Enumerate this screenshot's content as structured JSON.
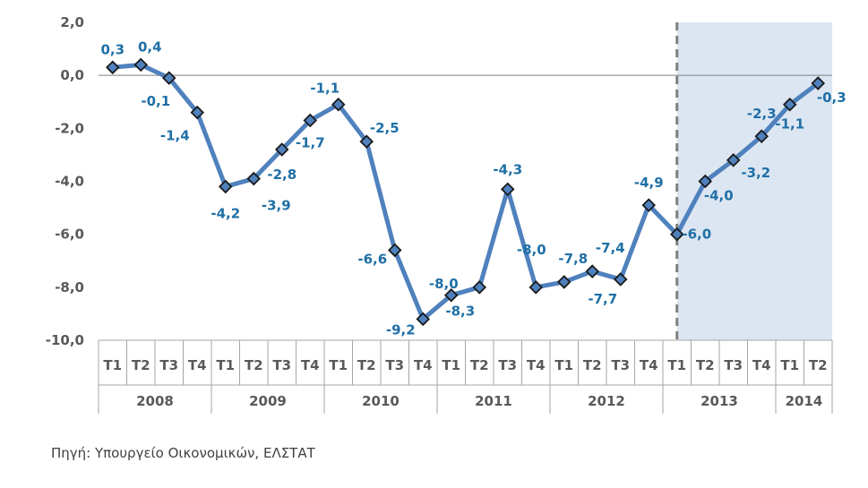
{
  "chart_data": {
    "type": "line",
    "categories": [
      "T1",
      "T2",
      "T3",
      "T4",
      "T1",
      "T2",
      "T3",
      "T4",
      "T1",
      "T2",
      "T3",
      "T4",
      "T1",
      "T2",
      "T3",
      "T4",
      "T1",
      "T2",
      "T3",
      "T4",
      "T1",
      "T2",
      "T3",
      "T4",
      "T1",
      "T2"
    ],
    "years": [
      {
        "label": "2008",
        "quarters": 4
      },
      {
        "label": "2009",
        "quarters": 4
      },
      {
        "label": "2010",
        "quarters": 4
      },
      {
        "label": "2011",
        "quarters": 4
      },
      {
        "label": "2012",
        "quarters": 4
      },
      {
        "label": "2013",
        "quarters": 4
      },
      {
        "label": "2014",
        "quarters": 2
      }
    ],
    "series": [
      {
        "values": [
          0.3,
          0.4,
          -0.1,
          -1.4,
          -4.2,
          -3.9,
          -2.8,
          -1.7,
          -1.1,
          -2.5,
          -6.6,
          -9.2,
          -8.3,
          -8.0,
          -4.3,
          -8.0,
          -7.8,
          -7.4,
          -7.7,
          -4.9,
          -6.0,
          -4.0,
          -3.2,
          -2.3,
          -1.1,
          -0.3
        ],
        "labels": [
          "0,3",
          "0,4",
          "-0,1",
          "-1,4",
          "-4,2",
          "-3,9",
          "-2,8",
          "-1,7",
          "-1,1",
          "-2,5",
          "-6,6",
          "-9,2",
          "-8,3",
          "-8,0",
          "-4,3",
          "-8,0",
          "-7,8",
          "-7,4",
          "-7,7",
          "-4,9",
          "-6,0",
          "-4,0",
          "-3,2",
          "-2,3",
          "-1,1",
          "-0,3"
        ]
      }
    ],
    "ylim": [
      -10,
      2
    ],
    "yticks": [
      2,
      0,
      -2,
      -4,
      -6,
      -8,
      -10
    ],
    "ytick_labels": [
      "2,0",
      "0,0",
      "-2,0",
      "-4,0",
      "-6,0",
      "-8,0",
      "-10,0"
    ],
    "forecast_start_index": 20,
    "colors": {
      "line": "#4F81BD",
      "marker": "#4F81BD",
      "marker_edge": "#1a1a1a",
      "data_label": "#1F6FA6",
      "forecast_shade": "#DCE6F2",
      "divider": "#7F7F7F",
      "axis_text": "#595959"
    }
  },
  "source_note": "Πηγή: Υπουργείο Οικονομικών, ΕΛΣΤΑΤ"
}
